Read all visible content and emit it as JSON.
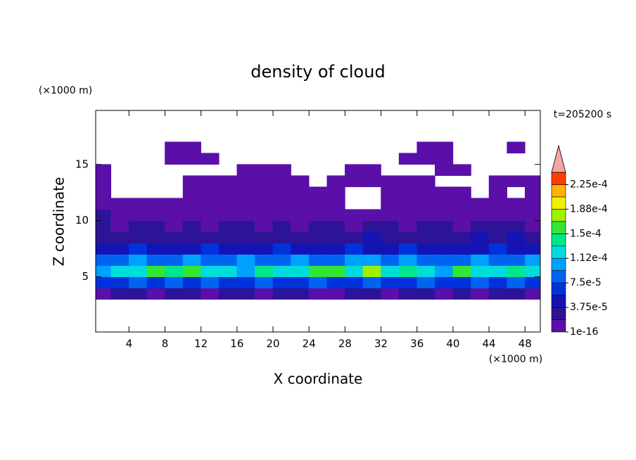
{
  "chart_data": {
    "type": "contour",
    "title": "density of cloud",
    "xlabel": "X coordinate",
    "ylabel": "Z coordinate",
    "xunit": "(×1000 m)",
    "yunit": "(×1000 m)",
    "annotation": "t=205200 s",
    "xlim": [
      0.3,
      49.7
    ],
    "ylim": [
      0.1,
      19.8
    ],
    "xticks": [
      4,
      8,
      12,
      16,
      20,
      24,
      28,
      32,
      36,
      40,
      44,
      48
    ],
    "yticks": [
      5,
      10,
      15
    ],
    "x": [
      1,
      3,
      5,
      7,
      9,
      11,
      13,
      15,
      17,
      19,
      21,
      23,
      25,
      27,
      29,
      31,
      33,
      35,
      37,
      39,
      41,
      43,
      45,
      47,
      49
    ],
    "y": [
      3.5,
      4.5,
      5.5,
      6.5,
      7.5,
      8.5,
      9.5,
      10.5,
      11.5,
      12.5,
      13.5,
      14.5,
      15.5,
      16.5
    ],
    "z": [
      [
        1e-05,
        2e-05,
        2e-05,
        1e-05,
        2e-05,
        2e-05,
        1e-05,
        2e-05,
        2e-05,
        1e-05,
        2e-05,
        2e-05,
        1e-05,
        1e-05,
        2e-05,
        2e-05,
        1e-05,
        2e-05,
        2e-05,
        1e-05,
        2e-05,
        1e-05,
        2e-05,
        2e-05,
        1e-05
      ],
      [
        6e-05,
        7e-05,
        8e-05,
        6e-05,
        9e-05,
        7e-05,
        8e-05,
        6e-05,
        7e-05,
        9e-05,
        6e-05,
        7e-05,
        8e-05,
        6e-05,
        7e-05,
        9e-05,
        7e-05,
        6e-05,
        8e-05,
        7e-05,
        6e-05,
        8e-05,
        7e-05,
        9e-05,
        6e-05
      ],
      [
        0.00011,
        0.00013,
        0.00012,
        0.00015,
        0.00014,
        0.00016,
        0.00012,
        0.00013,
        0.00011,
        0.00014,
        0.00012,
        0.00013,
        0.00016,
        0.00015,
        0.00013,
        0.00017,
        0.00012,
        0.00014,
        0.00013,
        0.00011,
        0.00015,
        0.00012,
        0.00013,
        0.00014,
        0.00012
      ],
      [
        9e-05,
        8e-05,
        0.0001,
        9e-05,
        8e-05,
        0.00011,
        9e-05,
        8e-05,
        0.0001,
        8e-05,
        9e-05,
        0.0001,
        9e-05,
        8e-05,
        0.00011,
        0.0001,
        9e-05,
        0.00011,
        9e-05,
        8e-05,
        9e-05,
        0.00011,
        8e-05,
        9e-05,
        0.0001
      ],
      [
        5e-05,
        4e-05,
        6e-05,
        5e-05,
        4e-05,
        5e-05,
        6e-05,
        4e-05,
        5e-05,
        4e-05,
        6e-05,
        5e-05,
        4e-05,
        5e-05,
        6e-05,
        5e-05,
        4e-05,
        6e-05,
        5e-05,
        4e-05,
        5e-05,
        4e-05,
        6e-05,
        5e-05,
        4e-05
      ],
      [
        3e-05,
        2.5e-05,
        3e-05,
        2.5e-05,
        3e-05,
        2e-05,
        3e-05,
        2.5e-05,
        3e-05,
        2e-05,
        2.5e-05,
        3e-05,
        2e-05,
        2.5e-05,
        3e-05,
        4e-05,
        3e-05,
        2.5e-05,
        3e-05,
        2e-05,
        3e-05,
        4e-05,
        3e-05,
        4e-05,
        3e-05
      ],
      [
        2e-05,
        1.5e-05,
        2e-05,
        2e-05,
        1.5e-05,
        2e-05,
        1.5e-05,
        2e-05,
        2e-05,
        1.5e-05,
        2e-05,
        1.5e-05,
        2e-05,
        2e-05,
        1.5e-05,
        2e-05,
        2e-05,
        1.5e-05,
        2e-05,
        2e-05,
        1.5e-05,
        2e-05,
        2e-05,
        2e-05,
        1.5e-05
      ],
      [
        2e-05,
        1e-05,
        5e-06,
        1e-05,
        5e-06,
        1e-05,
        5e-06,
        1e-05,
        1e-05,
        5e-06,
        1e-05,
        1e-05,
        5e-06,
        1e-05,
        5e-06,
        5e-06,
        1e-05,
        5e-06,
        1e-05,
        5e-06,
        1e-05,
        5e-06,
        5e-06,
        1e-05,
        5e-06
      ],
      [
        5e-06,
        5e-06,
        5e-06,
        5e-06,
        5e-06,
        5e-06,
        5e-06,
        5e-06,
        5e-06,
        5e-06,
        5e-06,
        5e-06,
        5e-06,
        5e-06,
        null,
        null,
        5e-06,
        5e-06,
        5e-06,
        5e-06,
        5e-06,
        5e-06,
        5e-06,
        5e-06,
        5e-06
      ],
      [
        5e-06,
        null,
        null,
        null,
        null,
        5e-06,
        5e-06,
        5e-06,
        5e-06,
        5e-06,
        5e-06,
        5e-06,
        5e-06,
        5e-06,
        null,
        null,
        5e-06,
        5e-06,
        5e-06,
        5e-06,
        5e-06,
        null,
        5e-06,
        null,
        5e-06
      ],
      [
        5e-06,
        null,
        null,
        null,
        null,
        5e-06,
        5e-06,
        5e-06,
        5e-06,
        5e-06,
        5e-06,
        5e-06,
        null,
        5e-06,
        5e-06,
        5e-06,
        5e-06,
        5e-06,
        5e-06,
        null,
        null,
        null,
        5e-06,
        5e-06,
        5e-06
      ],
      [
        5e-06,
        null,
        null,
        null,
        null,
        null,
        null,
        null,
        5e-06,
        5e-06,
        5e-06,
        null,
        null,
        null,
        5e-06,
        5e-06,
        null,
        null,
        null,
        5e-06,
        5e-06,
        null,
        null,
        null,
        null
      ],
      [
        null,
        null,
        null,
        null,
        5e-06,
        5e-06,
        5e-06,
        null,
        null,
        null,
        null,
        null,
        null,
        null,
        null,
        null,
        null,
        5e-06,
        5e-06,
        5e-06,
        null,
        null,
        null,
        null,
        null
      ],
      [
        null,
        null,
        null,
        null,
        5e-06,
        5e-06,
        null,
        null,
        null,
        null,
        null,
        null,
        null,
        null,
        null,
        null,
        null,
        null,
        5e-06,
        5e-06,
        null,
        null,
        null,
        5e-06,
        null
      ]
    ],
    "levels": [
      1e-16,
      1.875e-05,
      3.75e-05,
      5.625e-05,
      7.5e-05,
      9.375e-05,
      0.0001125,
      0.00013125,
      0.00015,
      0.00016875,
      0.0001875,
      0.00020625,
      0.000225,
      0.00024375
    ],
    "colors": [
      "#5a0fa8",
      "#2d1496",
      "#1414b4",
      "#0032dc",
      "#0064f0",
      "#00a0ff",
      "#00dcdc",
      "#00e68c",
      "#32e632",
      "#a0f000",
      "#f0f000",
      "#ffb400",
      "#ff3c00"
    ],
    "extend_color": "#f4a4a4",
    "cticks": [
      {
        "value": 1e-16,
        "label": "1e-16"
      },
      {
        "value": 3.75e-05,
        "label": "3.75e-5"
      },
      {
        "value": 7.5e-05,
        "label": "7.5e-5"
      },
      {
        "value": 0.0001125,
        "label": "1.12e-4"
      },
      {
        "value": 0.00015,
        "label": "1.5e-4"
      },
      {
        "value": 0.0001875,
        "label": "1.88e-4"
      },
      {
        "value": 0.000225,
        "label": "2.25e-4"
      }
    ]
  }
}
